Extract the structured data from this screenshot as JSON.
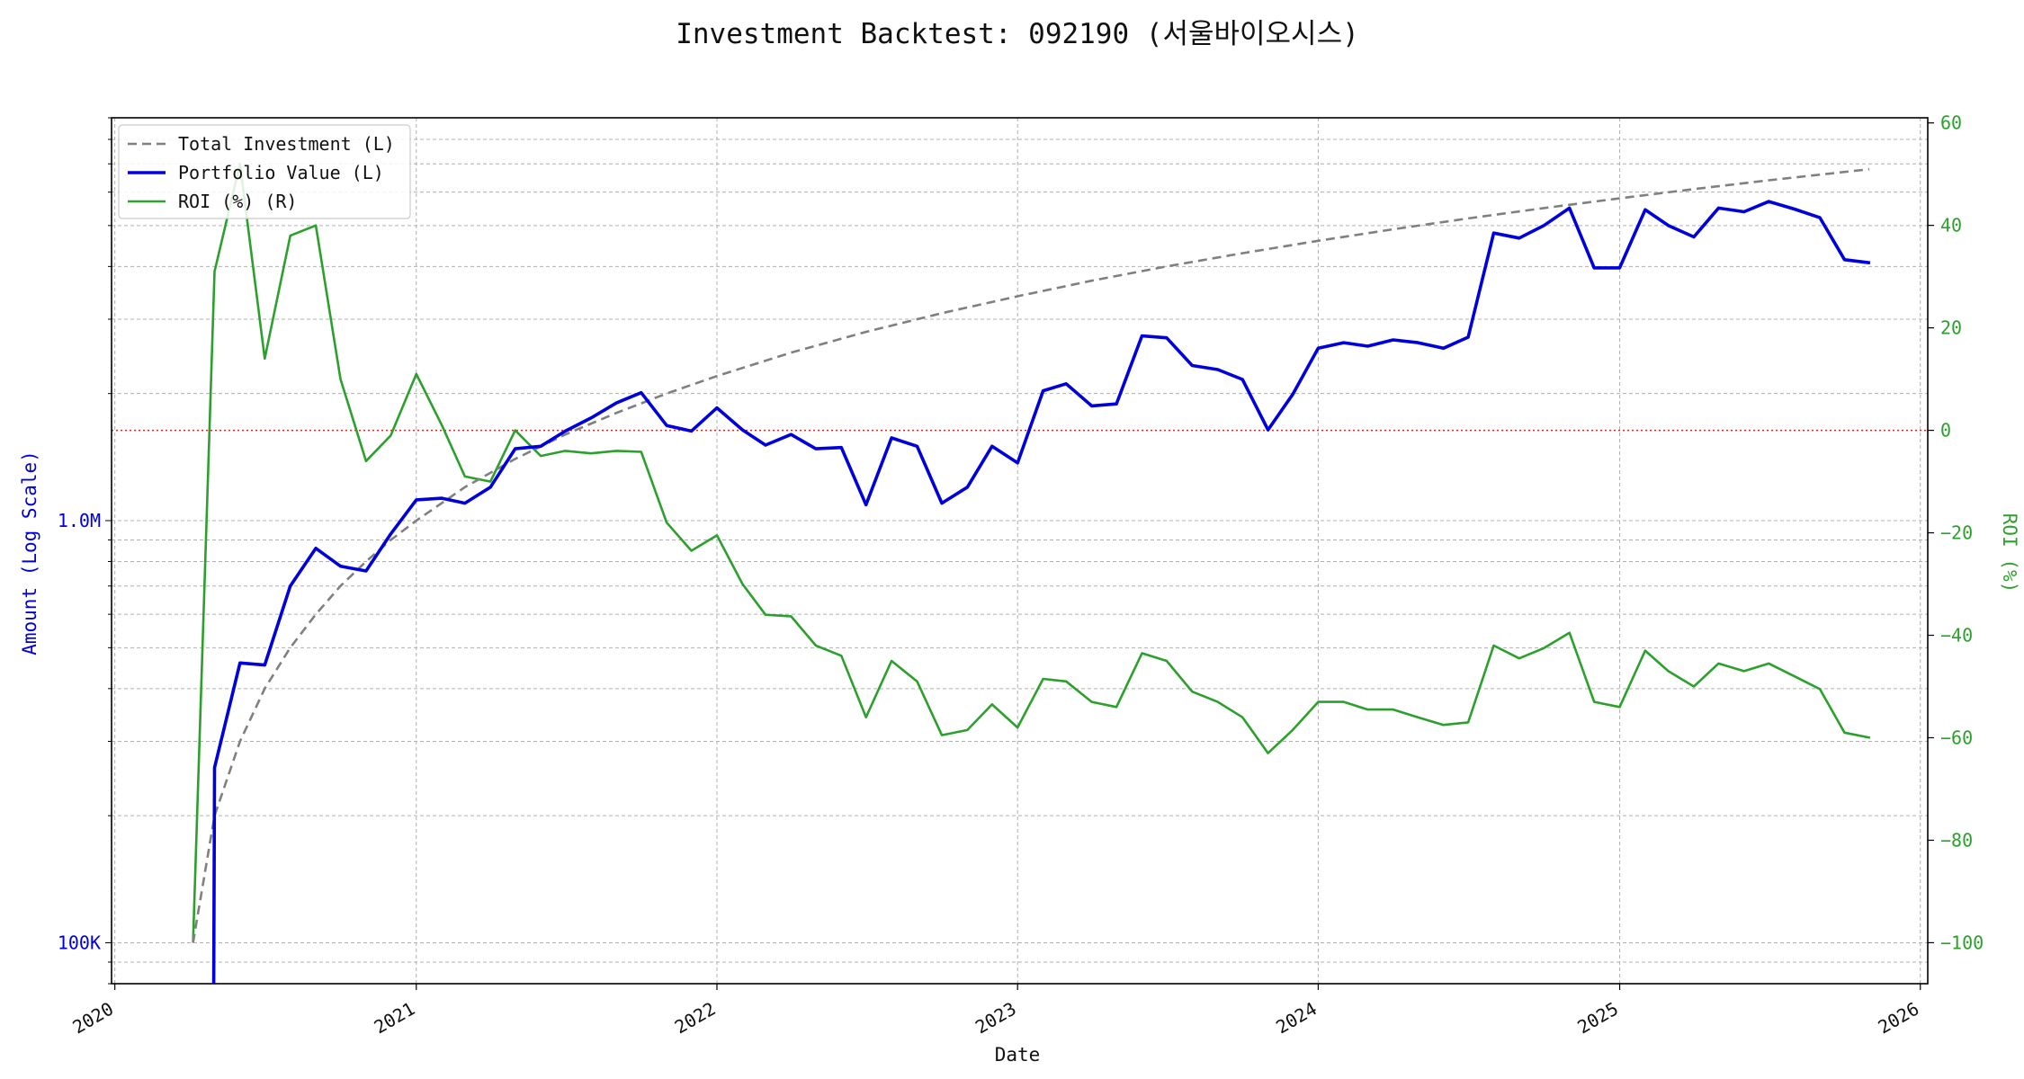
{
  "chart_data": {
    "type": "line",
    "title": "Investment Backtest: 092190 (서울바이오시스)",
    "xlabel": "Date",
    "ylabel_left": "Amount (Log Scale)",
    "ylabel_right": "ROI (%)",
    "x_range": [
      "2019-12-28",
      "2026-01-10"
    ],
    "x_ticks": [
      "2020",
      "2021",
      "2022",
      "2023",
      "2024",
      "2025",
      "2026"
    ],
    "y_left_scale": "log",
    "y_left_range": [
      80000,
      9000000
    ],
    "y_left_ticks": [
      {
        "value": 100000,
        "label": "100K"
      },
      {
        "value": 1000000,
        "label": "1.0M"
      }
    ],
    "y_right_range": [
      -108,
      61
    ],
    "y_right_ticks": [
      -100,
      -80,
      -60,
      -40,
      -20,
      0,
      20,
      40,
      60
    ],
    "grid": true,
    "legend_position": "top-left",
    "zero_line_color": "#d62728",
    "series": [
      {
        "name": "Total Investment (L)",
        "axis": "left",
        "color": "#808080",
        "style": "dashed",
        "x": [
          "2020-04-05",
          "2020-05-01",
          "2020-06-01",
          "2020-07-01",
          "2020-08-01",
          "2020-09-01",
          "2020-10-01",
          "2020-11-01",
          "2020-12-01",
          "2021-01-01",
          "2021-03-01",
          "2021-05-01",
          "2021-07-01",
          "2021-09-01",
          "2021-11-01",
          "2022-01-01",
          "2022-04-01",
          "2022-07-01",
          "2022-10-01",
          "2023-01-01",
          "2023-04-01",
          "2023-07-01",
          "2023-10-01",
          "2024-01-01",
          "2024-04-01",
          "2024-07-01",
          "2024-10-01",
          "2025-01-01",
          "2025-04-01",
          "2025-07-01",
          "2025-10-31"
        ],
        "values": [
          100000,
          200000,
          300000,
          400000,
          500000,
          600000,
          700000,
          800000,
          900000,
          1000000,
          1200000,
          1400000,
          1600000,
          1800000,
          2000000,
          2200000,
          2500000,
          2800000,
          3100000,
          3400000,
          3700000,
          4000000,
          4300000,
          4600000,
          4900000,
          5200000,
          5500000,
          5800000,
          6100000,
          6400000,
          6800000
        ]
      },
      {
        "name": "Portfolio Value (L)",
        "axis": "left",
        "color": "#0000dd",
        "style": "solid",
        "x": [
          "2020-04-30",
          "2020-05-01",
          "2020-06-01",
          "2020-07-01",
          "2020-08-01",
          "2020-09-01",
          "2020-10-01",
          "2020-11-01",
          "2020-12-01",
          "2021-01-01",
          "2021-02-01",
          "2021-03-01",
          "2021-04-01",
          "2021-05-01",
          "2021-06-01",
          "2021-07-01",
          "2021-08-01",
          "2021-09-01",
          "2021-10-01",
          "2021-11-01",
          "2021-12-01",
          "2022-01-01",
          "2022-02-01",
          "2022-03-01",
          "2022-04-01",
          "2022-05-01",
          "2022-06-01",
          "2022-07-01",
          "2022-08-01",
          "2022-09-01",
          "2022-10-01",
          "2022-11-01",
          "2022-12-01",
          "2023-01-01",
          "2023-02-01",
          "2023-03-01",
          "2023-04-01",
          "2023-05-01",
          "2023-06-01",
          "2023-07-01",
          "2023-08-01",
          "2023-09-01",
          "2023-10-01",
          "2023-11-01",
          "2023-12-01",
          "2024-01-01",
          "2024-02-01",
          "2024-03-01",
          "2024-04-01",
          "2024-05-01",
          "2024-06-01",
          "2024-07-01",
          "2024-08-01",
          "2024-09-01",
          "2024-10-01",
          "2024-11-01",
          "2024-12-01",
          "2025-01-01",
          "2025-02-01",
          "2025-03-01",
          "2025-04-01",
          "2025-05-01",
          "2025-06-01",
          "2025-07-01",
          "2025-08-01",
          "2025-09-01",
          "2025-10-01",
          "2025-11-01"
        ],
        "values": [
          70000,
          260000,
          460000,
          455000,
          700000,
          860000,
          780000,
          760000,
          930000,
          1120000,
          1130000,
          1100000,
          1200000,
          1480000,
          1500000,
          1630000,
          1750000,
          1900000,
          2010000,
          1680000,
          1630000,
          1850000,
          1640000,
          1510000,
          1600000,
          1480000,
          1490000,
          1090000,
          1570000,
          1500000,
          1100000,
          1200000,
          1500000,
          1370000,
          2030000,
          2110000,
          1870000,
          1890000,
          2740000,
          2710000,
          2330000,
          2280000,
          2160000,
          1640000,
          1990000,
          2560000,
          2640000,
          2590000,
          2680000,
          2640000,
          2560000,
          2720000,
          4800000,
          4670000,
          5000000,
          5500000,
          3970000,
          3970000,
          5450000,
          5000000,
          4700000,
          5500000,
          5390000,
          5700000,
          5470000,
          5220000,
          4150000,
          4080000
        ]
      },
      {
        "name": "ROI (%) (R)",
        "axis": "right",
        "color": "#2ca02c",
        "style": "solid",
        "x": [
          "2020-04-05",
          "2020-05-01",
          "2020-06-01",
          "2020-07-01",
          "2020-08-01",
          "2020-09-01",
          "2020-10-01",
          "2020-11-01",
          "2020-12-01",
          "2021-01-01",
          "2021-02-01",
          "2021-03-01",
          "2021-04-01",
          "2021-05-01",
          "2021-06-01",
          "2021-07-01",
          "2021-08-01",
          "2021-09-01",
          "2021-10-01",
          "2021-11-01",
          "2021-12-01",
          "2022-01-01",
          "2022-02-01",
          "2022-03-01",
          "2022-04-01",
          "2022-05-01",
          "2022-06-01",
          "2022-07-01",
          "2022-08-01",
          "2022-09-01",
          "2022-10-01",
          "2022-11-01",
          "2022-12-01",
          "2023-01-01",
          "2023-02-01",
          "2023-03-01",
          "2023-04-01",
          "2023-05-01",
          "2023-06-01",
          "2023-07-01",
          "2023-08-01",
          "2023-09-01",
          "2023-10-01",
          "2023-11-01",
          "2023-12-01",
          "2024-01-01",
          "2024-02-01",
          "2024-03-01",
          "2024-04-01",
          "2024-05-01",
          "2024-06-01",
          "2024-07-01",
          "2024-08-01",
          "2024-09-01",
          "2024-10-01",
          "2024-11-01",
          "2024-12-01",
          "2025-01-01",
          "2025-02-01",
          "2025-03-01",
          "2025-04-01",
          "2025-05-01",
          "2025-06-01",
          "2025-07-01",
          "2025-08-01",
          "2025-09-01",
          "2025-10-01",
          "2025-11-01"
        ],
        "values": [
          -100,
          31,
          52,
          14,
          38,
          40,
          10,
          -6,
          -1,
          11,
          1,
          -9,
          -10,
          0,
          -5,
          -4,
          -4.5,
          -4,
          -4.2,
          -18,
          -23.5,
          -20.5,
          -30,
          -36,
          -36.3,
          -42,
          -44,
          -56,
          -45,
          -49,
          -59.5,
          -58.5,
          -53.5,
          -58,
          -48.5,
          -49,
          -53,
          -54,
          -43.5,
          -45,
          -51,
          -53,
          -56,
          -63,
          -58.5,
          -53,
          -53,
          -54.5,
          -54.5,
          -56,
          -57.5,
          -57,
          -42,
          -44.5,
          -42.5,
          -39.5,
          -53,
          -54,
          -43,
          -47,
          -50,
          -45.5,
          -47,
          -45.5,
          -48,
          -50.5,
          -59,
          -60
        ]
      }
    ]
  }
}
